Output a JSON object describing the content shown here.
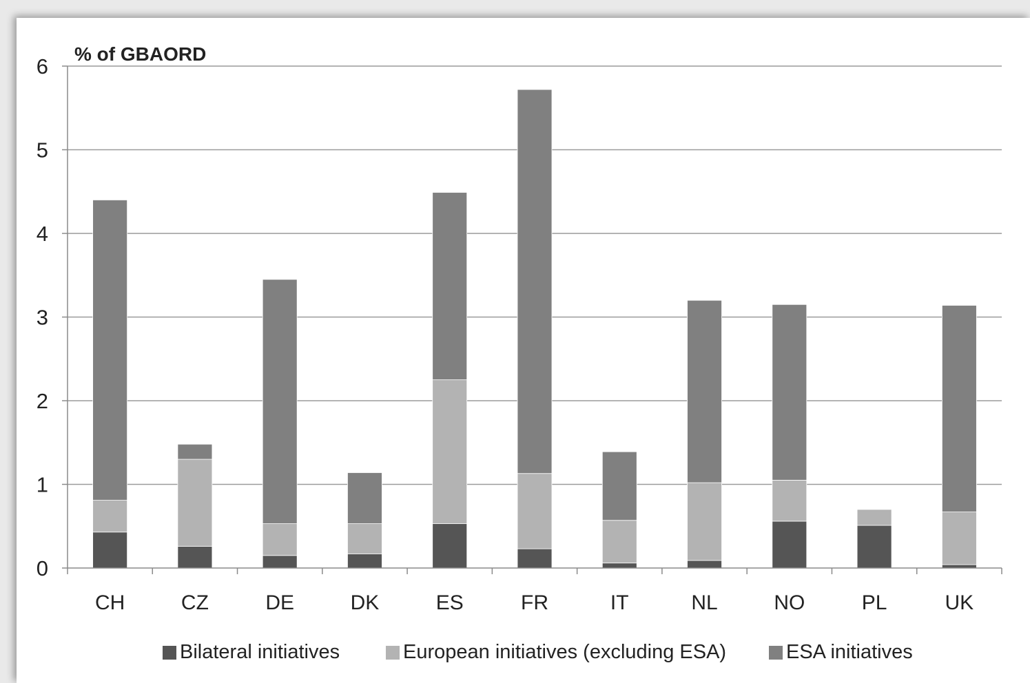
{
  "chart_data": {
    "type": "bar",
    "stacked": true,
    "title": "",
    "ylabel": "% of GBAORD",
    "xlabel": "",
    "ylim": [
      0,
      6
    ],
    "yticks": [
      0,
      1,
      2,
      3,
      4,
      5,
      6
    ],
    "grid": true,
    "legend_position": "bottom",
    "categories": [
      "CH",
      "CZ",
      "DE",
      "DK",
      "ES",
      "FR",
      "IT",
      "NL",
      "NO",
      "PL",
      "UK"
    ],
    "series": [
      {
        "name": "Bilateral initiatives",
        "color": "#555555",
        "values": [
          0.43,
          0.26,
          0.15,
          0.17,
          0.53,
          0.23,
          0.06,
          0.09,
          0.56,
          0.51,
          0.04
        ]
      },
      {
        "name": "European initiatives (excluding ESA)",
        "color": "#b3b3b3",
        "values": [
          0.38,
          1.04,
          0.38,
          0.36,
          1.72,
          0.9,
          0.51,
          0.93,
          0.49,
          0.19,
          0.63
        ]
      },
      {
        "name": "ESA initiatives",
        "color": "#808080",
        "values": [
          3.59,
          0.18,
          2.92,
          0.61,
          2.24,
          4.59,
          0.82,
          2.18,
          2.1,
          0.0,
          2.47
        ]
      }
    ]
  }
}
